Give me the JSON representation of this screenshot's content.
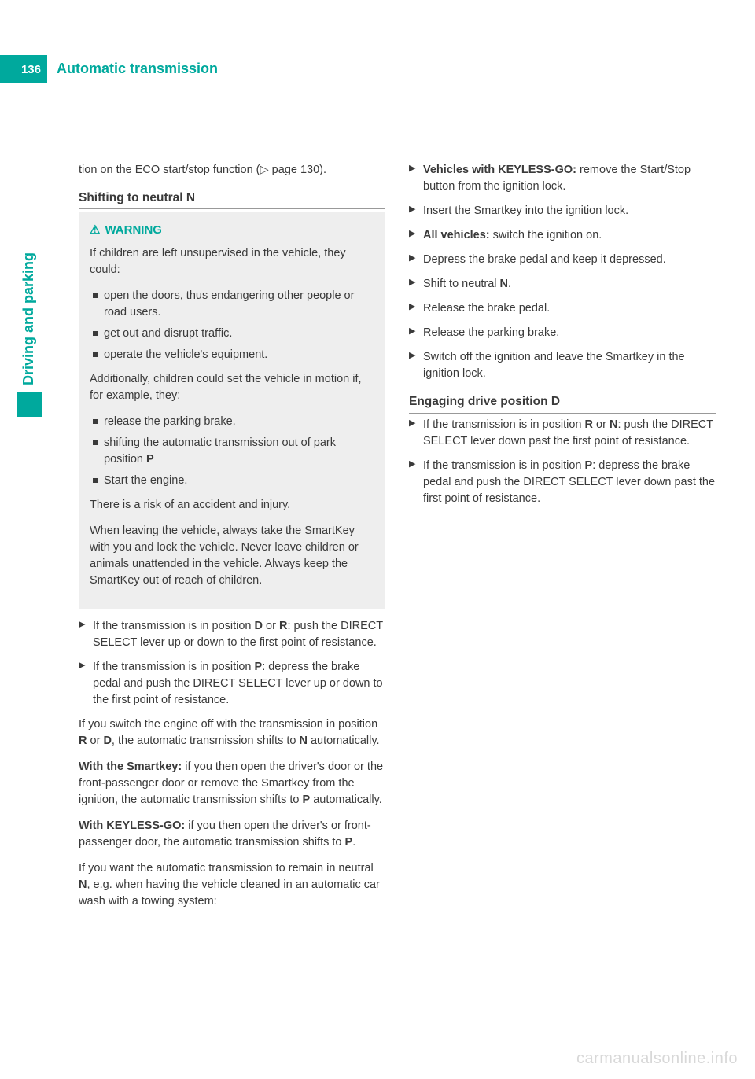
{
  "page_number": "136",
  "header_title": "Automatic transmission",
  "side_label": "Driving and parking",
  "col1": {
    "intro": "tion on the ECO start/stop function (▷ page 130).",
    "h_neutral": "Shifting to neutral N",
    "warning_label": "WARNING",
    "warn_p1": "If children are left unsupervised in the vehicle, they could:",
    "warn_b1": "open the doors, thus endangering other people or road users.",
    "warn_b2": "get out and disrupt traffic.",
    "warn_b3": "operate the vehicle's equipment.",
    "warn_p2": "Additionally, children could set the vehicle in motion if, for example, they:",
    "warn_b4": "release the parking brake.",
    "warn_b5_a": "shifting the automatic transmission out of park position ",
    "warn_b5_b": "P",
    "warn_b6": "Start the engine.",
    "warn_p3": "There is a risk of an accident and injury.",
    "warn_p4": "When leaving the vehicle, always take the SmartKey with you and lock the vehicle. Never leave children or animals unattended in the vehicle. Always keep the SmartKey out of reach of children.",
    "s1_a": "If the transmission is in position ",
    "s1_b": "D",
    "s1_c": " or ",
    "s1_d": "R",
    "s1_e": ": push the DIRECT SELECT lever up or down to the first point of resistance.",
    "s2_a": "If the transmission is in position ",
    "s2_b": "P",
    "s2_c": ": depress the brake pedal and push the DIRECT SELECT lever up or down to the first point of resistance.",
    "p3_a": "If you switch the engine off with the transmission in position ",
    "p3_b": "R",
    "p3_c": " or ",
    "p3_d": "D",
    "p3_e": ", the automatic transmission shifts to ",
    "p3_f": "N",
    "p3_g": " automatically.",
    "p4_a": "With the Smartkey:",
    "p4_b": " if you then open the driver's door or the front-passenger door or remove the Smartkey from the ignition, the automatic transmission shifts to ",
    "p4_c": "P",
    "p4_d": " automatically.",
    "p5_a": "With KEYLESS-GO:",
    "p5_b": " if you then open the driver's or front-passenger door, the automatic transmission shifts to ",
    "p5_c": "P",
    "p5_d": ".",
    "p6_a": "If you want the automatic transmission to remain in neutral ",
    "p6_b": "N",
    "p6_c": ", e.g. when having the vehicle cleaned in an automatic car wash with a towing system:"
  },
  "col2": {
    "s1_a": "Vehicles with KEYLESS-GO:",
    "s1_b": " remove the Start/Stop button from the ignition lock.",
    "s2": "Insert the Smartkey into the ignition lock.",
    "s3_a": "All vehicles:",
    "s3_b": " switch the ignition on.",
    "s4": "Depress the brake pedal and keep it depressed.",
    "s5_a": "Shift to neutral ",
    "s5_b": "N",
    "s5_c": ".",
    "s6": "Release the brake pedal.",
    "s7": "Release the parking brake.",
    "s8": "Switch off the ignition and leave the Smartkey in the ignition lock.",
    "h_drive": "Engaging drive position D",
    "d1_a": "If the transmission is in position ",
    "d1_b": "R",
    "d1_c": " or ",
    "d1_d": "N",
    "d1_e": ": push the DIRECT SELECT lever down past the first point of resistance.",
    "d2_a": "If the transmission is in position ",
    "d2_b": "P",
    "d2_c": ": depress the brake pedal and push the DIRECT SELECT lever down past the first point of resistance."
  },
  "watermark": "carmanualsonline.info"
}
